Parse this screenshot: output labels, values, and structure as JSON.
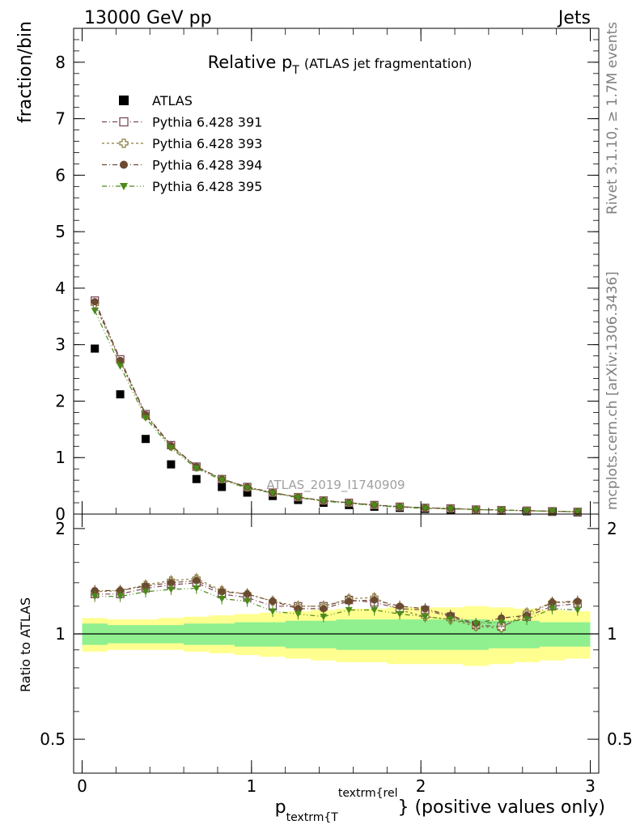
{
  "header": {
    "left": "13000 GeV pp",
    "right": "Jets"
  },
  "title": {
    "main": "Relative p",
    "sub": "T",
    "paren": "(ATLAS jet fragmentation)"
  },
  "side_labels": {
    "rivet": "Rivet 3.1.10, ≥ 1.7M events",
    "mcplots": "mcplots.cern.ch [arXiv:1306.3436]"
  },
  "watermark": "ATLAS_2019_I1740909",
  "chart_data": [
    {
      "panel": "main",
      "type": "scatter",
      "ylabel": "fraction/bin",
      "xlim": [
        -0.05,
        3.05
      ],
      "ylim": [
        0,
        8.6
      ],
      "yticks": [
        0,
        1,
        2,
        3,
        4,
        5,
        6,
        7,
        8
      ],
      "legend_position": "top-left",
      "x": [
        0.075,
        0.225,
        0.375,
        0.525,
        0.675,
        0.825,
        0.975,
        1.125,
        1.275,
        1.425,
        1.575,
        1.725,
        1.875,
        2.025,
        2.175,
        2.325,
        2.475,
        2.625,
        2.775,
        2.925
      ],
      "series": [
        {
          "name": "ATLAS",
          "color": "#000000",
          "marker": "square-filled",
          "values": [
            2.93,
            2.12,
            1.33,
            0.88,
            0.62,
            0.48,
            0.38,
            0.32,
            0.25,
            0.2,
            0.16,
            0.13,
            0.11,
            0.09,
            0.08,
            0.07,
            0.06,
            0.05,
            0.04,
            0.03
          ]
        },
        {
          "name": "Pythia 6.428 391",
          "color": "#7a4a5a",
          "marker": "square-open",
          "values": [
            3.78,
            2.74,
            1.77,
            1.22,
            0.84,
            0.62,
            0.48,
            0.38,
            0.3,
            0.24,
            0.2,
            0.16,
            0.13,
            0.11,
            0.1,
            0.08,
            0.07,
            0.06,
            0.05,
            0.04
          ]
        },
        {
          "name": "Pythia 6.428 393",
          "color": "#8a7a3a",
          "marker": "cross-open",
          "values": [
            3.72,
            2.7,
            1.74,
            1.2,
            0.83,
            0.62,
            0.47,
            0.38,
            0.3,
            0.24,
            0.2,
            0.16,
            0.13,
            0.11,
            0.1,
            0.08,
            0.07,
            0.06,
            0.05,
            0.04
          ]
        },
        {
          "name": "Pythia 6.428 394",
          "color": "#6b4a32",
          "marker": "circle-filled",
          "values": [
            3.76,
            2.72,
            1.76,
            1.21,
            0.84,
            0.62,
            0.48,
            0.38,
            0.3,
            0.24,
            0.2,
            0.16,
            0.13,
            0.11,
            0.1,
            0.08,
            0.07,
            0.06,
            0.05,
            0.04
          ]
        },
        {
          "name": "Pythia 6.428 395",
          "color": "#4a8a1a",
          "marker": "triangle-down-filled",
          "values": [
            3.6,
            2.62,
            1.7,
            1.17,
            0.81,
            0.6,
            0.46,
            0.37,
            0.29,
            0.23,
            0.19,
            0.15,
            0.12,
            0.1,
            0.09,
            0.08,
            0.07,
            0.06,
            0.05,
            0.04
          ]
        }
      ]
    },
    {
      "panel": "ratio",
      "type": "scatter",
      "ylabel": "Ratio to ATLAS",
      "xlabel_main": "p",
      "xlabel_sub": "textrm{T",
      "xlabel_sup": "textrm{rel",
      "xlabel_tail": "} (positive values only)",
      "xlim": [
        -0.05,
        3.05
      ],
      "ylim": [
        0.4,
        2.2
      ],
      "yticks": [
        0.5,
        1,
        2
      ],
      "xticks": [
        0,
        1,
        2,
        3
      ],
      "x": [
        0.075,
        0.225,
        0.375,
        0.525,
        0.675,
        0.825,
        0.975,
        1.125,
        1.275,
        1.425,
        1.575,
        1.725,
        1.875,
        2.025,
        2.175,
        2.325,
        2.475,
        2.625,
        2.775,
        2.925
      ],
      "band_inner": {
        "color": "#90f090",
        "lo": [
          0.93,
          0.94,
          0.94,
          0.94,
          0.93,
          0.93,
          0.92,
          0.92,
          0.91,
          0.91,
          0.9,
          0.9,
          0.9,
          0.9,
          0.9,
          0.9,
          0.91,
          0.91,
          0.92,
          0.92
        ],
        "hi": [
          1.07,
          1.06,
          1.06,
          1.06,
          1.07,
          1.07,
          1.08,
          1.08,
          1.09,
          1.09,
          1.1,
          1.1,
          1.1,
          1.1,
          1.1,
          1.1,
          1.09,
          1.09,
          1.08,
          1.08
        ]
      },
      "band_outer": {
        "color": "#ffff90",
        "lo": [
          0.89,
          0.9,
          0.9,
          0.9,
          0.89,
          0.88,
          0.87,
          0.86,
          0.85,
          0.84,
          0.83,
          0.83,
          0.82,
          0.82,
          0.82,
          0.81,
          0.82,
          0.83,
          0.84,
          0.85
        ],
        "hi": [
          1.11,
          1.1,
          1.1,
          1.11,
          1.12,
          1.13,
          1.14,
          1.15,
          1.16,
          1.17,
          1.18,
          1.18,
          1.19,
          1.19,
          1.19,
          1.2,
          1.19,
          1.18,
          1.17,
          1.16
        ]
      },
      "series": [
        {
          "name": "Pythia 6.428 391",
          "color": "#7a4a5a",
          "marker": "square-open",
          "values": [
            1.3,
            1.3,
            1.35,
            1.38,
            1.4,
            1.3,
            1.27,
            1.2,
            1.2,
            1.2,
            1.25,
            1.23,
            1.18,
            1.17,
            1.12,
            1.06,
            1.05,
            1.12,
            1.2,
            1.22
          ]
        },
        {
          "name": "Pythia 6.428 393",
          "color": "#8a7a3a",
          "marker": "cross-open",
          "values": [
            1.32,
            1.33,
            1.38,
            1.42,
            1.44,
            1.33,
            1.3,
            1.24,
            1.2,
            1.2,
            1.26,
            1.27,
            1.17,
            1.12,
            1.1,
            1.05,
            1.04,
            1.15,
            1.23,
            1.23
          ]
        },
        {
          "name": "Pythia 6.428 394",
          "color": "#6b4a32",
          "marker": "circle-filled",
          "values": [
            1.33,
            1.33,
            1.37,
            1.4,
            1.42,
            1.32,
            1.3,
            1.24,
            1.18,
            1.18,
            1.24,
            1.25,
            1.2,
            1.18,
            1.13,
            1.07,
            1.11,
            1.13,
            1.23,
            1.24
          ]
        },
        {
          "name": "Pythia 6.428 395",
          "color": "#4a8a1a",
          "marker": "triangle-down-filled",
          "values": [
            1.28,
            1.28,
            1.32,
            1.34,
            1.35,
            1.26,
            1.24,
            1.16,
            1.14,
            1.12,
            1.17,
            1.17,
            1.14,
            1.12,
            1.1,
            1.07,
            1.08,
            1.1,
            1.18,
            1.17
          ]
        }
      ]
    }
  ]
}
